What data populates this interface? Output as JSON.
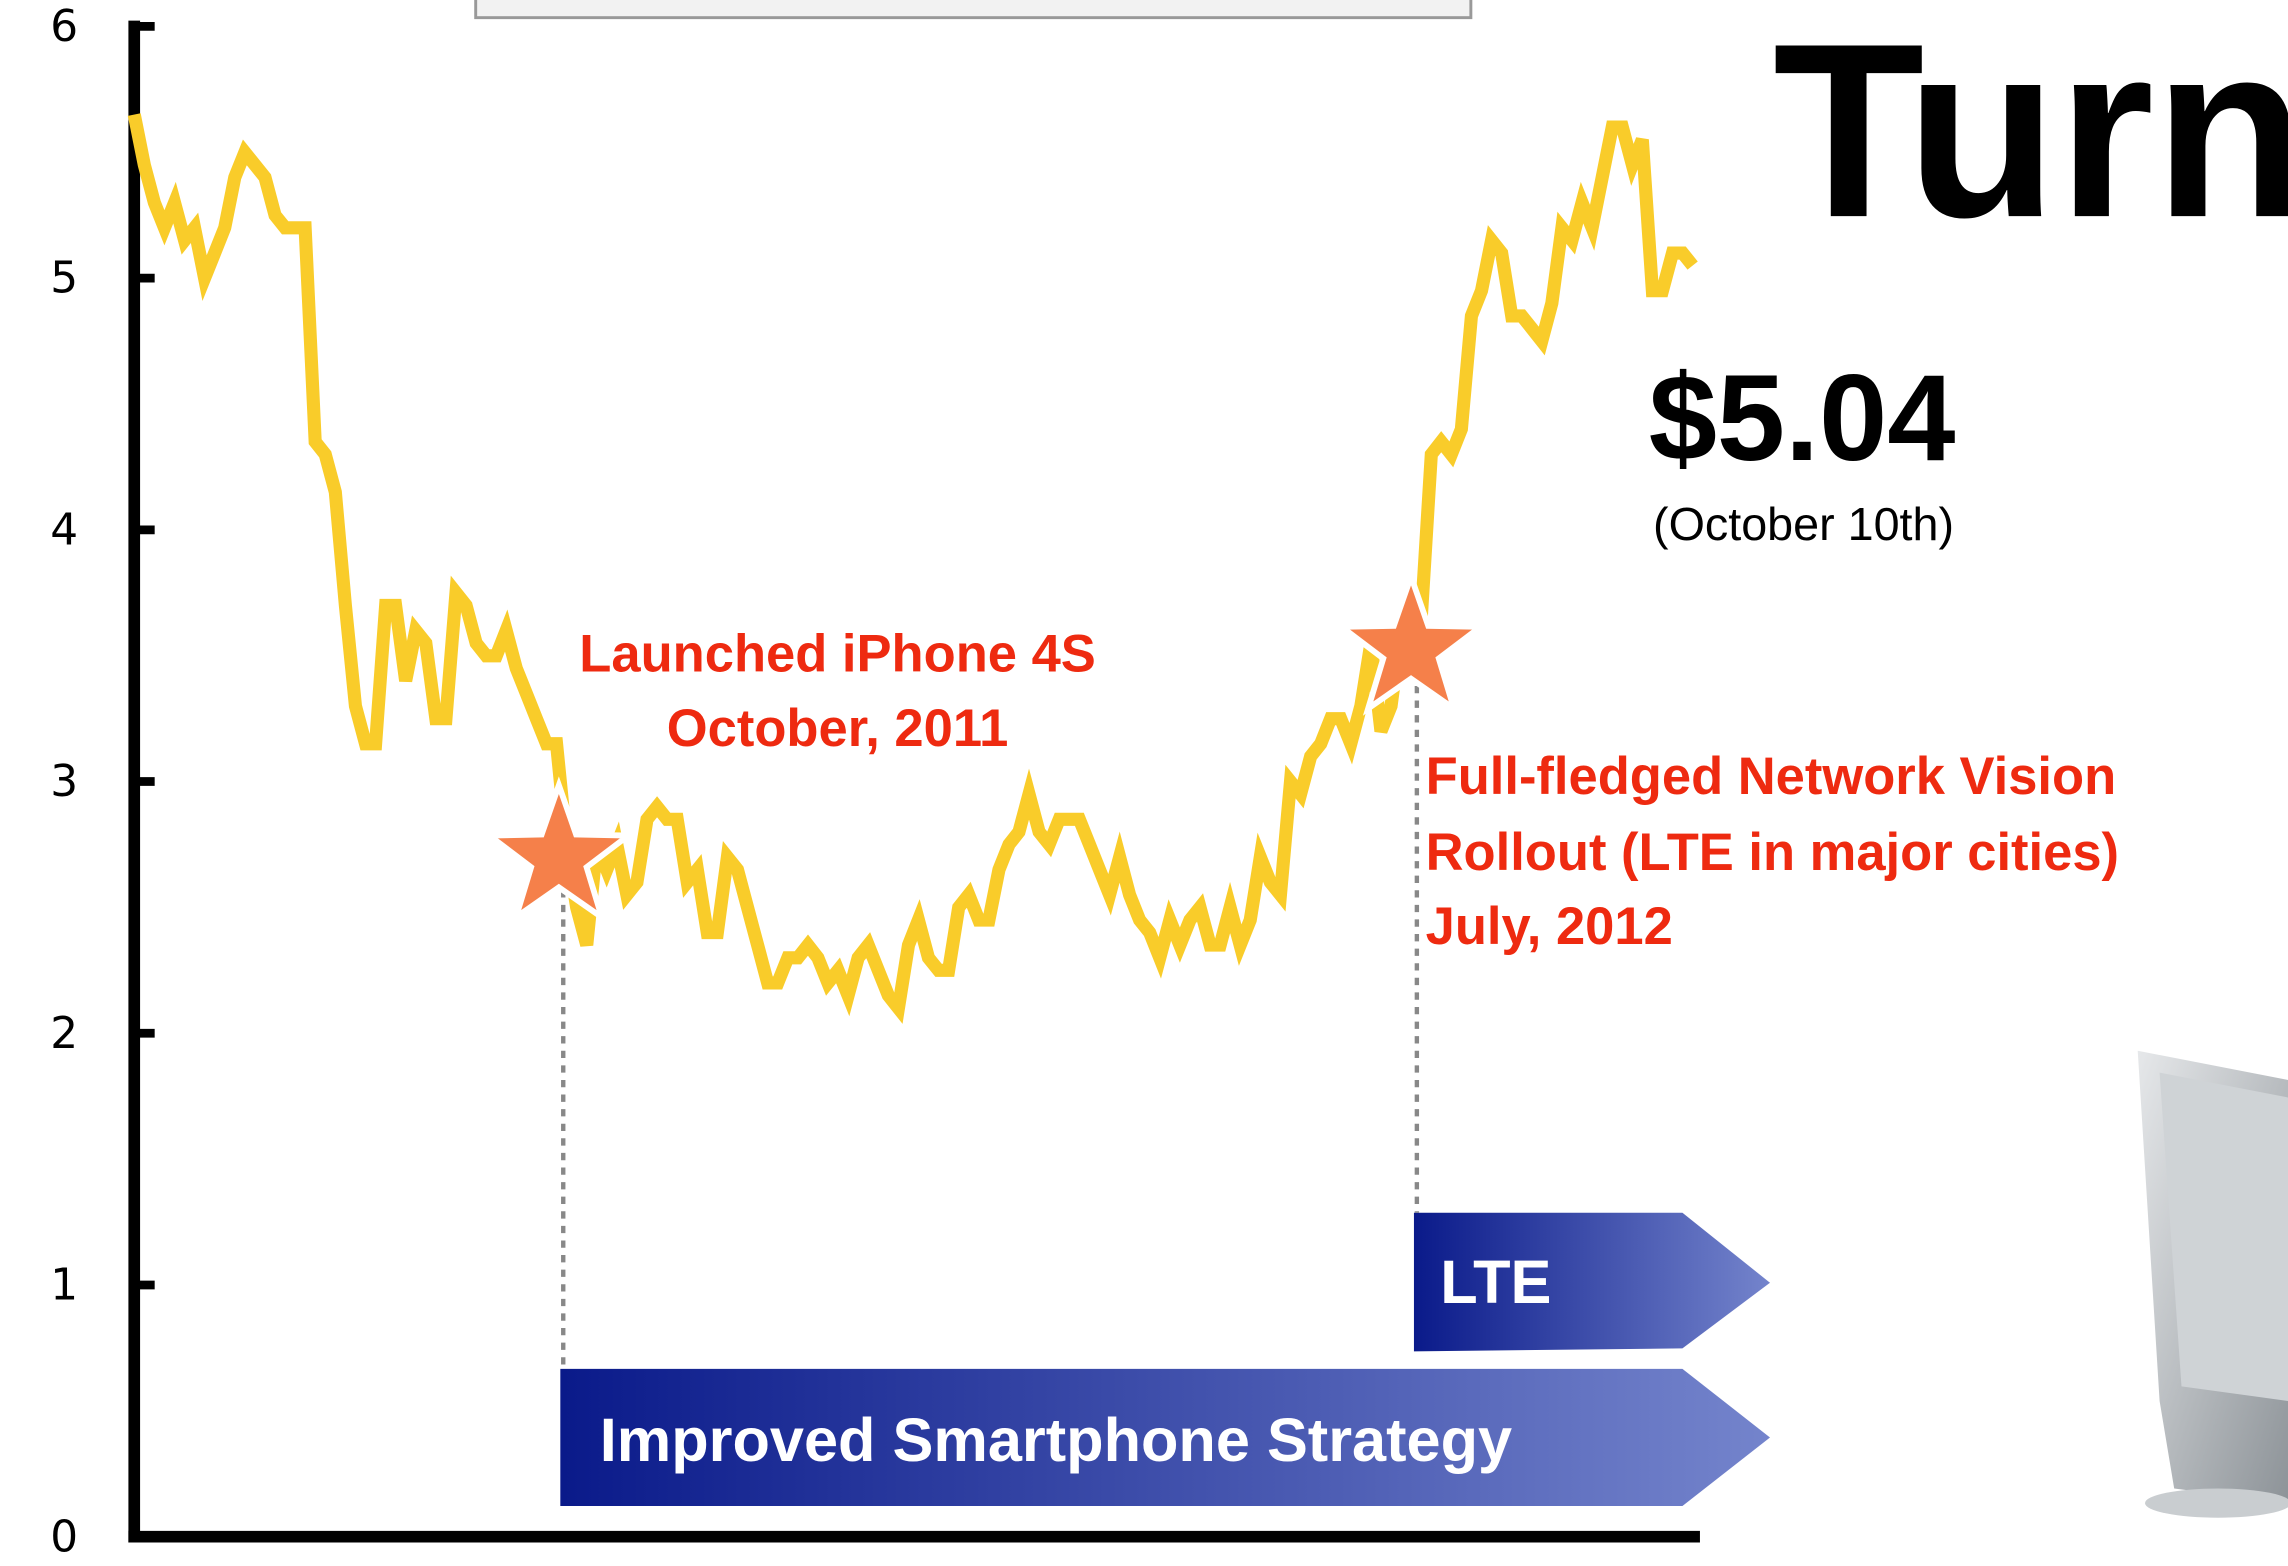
{
  "chart_data": {
    "type": "line",
    "title": "Turn",
    "price": "$5.04",
    "price_date": "(October 10th)",
    "annotations": [
      {
        "lines": [
          "Launched iPhone 4S",
          "October, 2011"
        ]
      },
      {
        "lines": [
          "Full-fledged Network Vision",
          "Rollout (LTE in major cities)",
          "July, 2012"
        ]
      }
    ],
    "phases": [
      "LTE",
      "Improved Smartphone Strategy"
    ],
    "color": "#f9cc2a",
    "ylim": [
      0,
      6
    ],
    "yticks": [
      0,
      1,
      2,
      3,
      4,
      5,
      6
    ],
    "values": [
      5.65,
      5.45,
      5.3,
      5.2,
      5.3,
      5.15,
      5.2,
      5.0,
      5.1,
      5.2,
      5.4,
      5.5,
      5.45,
      5.4,
      5.25,
      5.2,
      5.2,
      5.2,
      4.35,
      4.3,
      4.15,
      3.7,
      3.3,
      3.15,
      3.15,
      3.7,
      3.7,
      3.4,
      3.6,
      3.55,
      3.25,
      3.25,
      3.75,
      3.7,
      3.55,
      3.5,
      3.5,
      3.6,
      3.45,
      3.35,
      3.25,
      3.15,
      3.15,
      2.75,
      2.5,
      2.35,
      2.75,
      2.65,
      2.75,
      2.55,
      2.6,
      2.85,
      2.9,
      2.85,
      2.85,
      2.6,
      2.65,
      2.4,
      2.4,
      2.7,
      2.65,
      2.5,
      2.35,
      2.2,
      2.2,
      2.3,
      2.3,
      2.35,
      2.3,
      2.2,
      2.25,
      2.15,
      2.3,
      2.35,
      2.25,
      2.15,
      2.1,
      2.35,
      2.45,
      2.3,
      2.25,
      2.25,
      2.5,
      2.55,
      2.45,
      2.45,
      2.65,
      2.75,
      2.8,
      2.95,
      2.8,
      2.75,
      2.85,
      2.85,
      2.85,
      2.75,
      2.65,
      2.55,
      2.7,
      2.55,
      2.45,
      2.4,
      2.3,
      2.45,
      2.35,
      2.45,
      2.5,
      2.35,
      2.35,
      2.5,
      2.35,
      2.45,
      2.7,
      2.6,
      2.55,
      3.0,
      2.95,
      3.1,
      3.15,
      3.25,
      3.25,
      3.15,
      3.3,
      3.55,
      3.2,
      3.3,
      3.6,
      3.75,
      3.65,
      4.3,
      4.35,
      4.3,
      4.4,
      4.85,
      4.95,
      5.15,
      5.1,
      4.85,
      4.85,
      4.8,
      4.75,
      4.9,
      5.2,
      5.15,
      5.3,
      5.2,
      5.4,
      5.6,
      5.6,
      5.45,
      5.55,
      4.95,
      4.95,
      5.1,
      5.1,
      5.05
    ]
  }
}
